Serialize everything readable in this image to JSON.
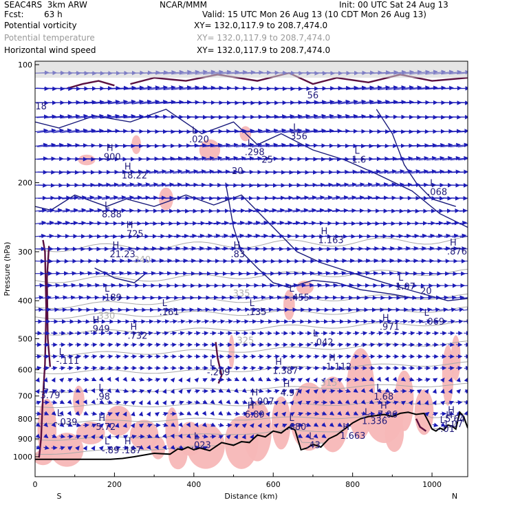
{
  "header": {
    "model": "SEAC4RS  3km ARW",
    "center": "NCAR/MMM",
    "init": "Init: 00 UTC Sat 24 Aug 13",
    "fcst_label": "Fcst:",
    "fcst_value": "63 h",
    "valid": "Valid: 15 UTC Mon 26 Aug 13 (10 CDT Mon 26 Aug 13)",
    "fields": [
      {
        "name": "Potential vorticity",
        "xy": "XY= 132.0,117.9 to 208.7,474.0",
        "color": "#000000"
      },
      {
        "name": "Potential temperature",
        "xy": "XY= 132.0,117.9 to 208.7,474.0",
        "color": "#9a9a9a"
      },
      {
        "name": "Horizontal wind speed",
        "xy": "XY= 132.0,117.9 to 208.7,474.0",
        "color": "#000000"
      }
    ]
  },
  "chart_data": {
    "type": "cross-section",
    "xlabel": "Distance (km)",
    "ylabel": "Pressure (hPa)",
    "xlim": [
      0,
      1090
    ],
    "ylim": [
      1000,
      100
    ],
    "y_scale": "log",
    "x_ticks": [
      0,
      200,
      400,
      600,
      800,
      1000
    ],
    "y_ticks": [
      100,
      200,
      300,
      400,
      500,
      600,
      700,
      800,
      900,
      1000
    ],
    "x_end_labels": {
      "left": "S",
      "right": "N"
    },
    "theta_labels": [
      {
        "label": "340",
        "x": 270,
        "p": 320
      },
      {
        "label": "335",
        "x": 520,
        "p": 390
      },
      {
        "label": "330",
        "x": 180,
        "p": 445
      },
      {
        "label": "325",
        "x": 530,
        "p": 515
      },
      {
        "label": "315",
        "x": 740,
        "p": 660
      }
    ],
    "theta_lines": [
      {
        "p": [
          985,
          965,
          950,
          930,
          920,
          900,
          895
        ]
      },
      {
        "p": [
          905,
          895,
          885,
          870,
          860,
          850,
          845
        ]
      },
      {
        "p": [
          820,
          812,
          805,
          800,
          795,
          790,
          790
        ]
      },
      {
        "p": [
          745,
          740,
          740,
          735,
          735,
          730,
          728
        ]
      },
      {
        "p": [
          680,
          680,
          675,
          672,
          665,
          660,
          655
        ]
      },
      {
        "p": [
          610,
          605,
          608,
          600,
          590,
          585,
          578
        ]
      },
      {
        "p": [
          548,
          545,
          540,
          535,
          528,
          520,
          512
        ]
      },
      {
        "p": [
          485,
          480,
          478,
          470,
          465,
          460,
          455
        ]
      },
      {
        "p": [
          440,
          436,
          432,
          430,
          428,
          425,
          420
        ]
      },
      {
        "p": [
          415,
          408,
          400,
          398,
          395,
          392,
          390
        ]
      },
      {
        "p": [
          355,
          352,
          350,
          345,
          342,
          340,
          338
        ]
      },
      {
        "p": [
          295,
          292,
          290,
          287,
          285,
          282,
          280
        ]
      }
    ],
    "theta_x": [
      0,
      180,
      360,
      540,
      720,
      900,
      1090
    ],
    "wind_speed_labels": [
      {
        "label": "18",
        "x": 15,
        "p": 130
      },
      {
        "label": "56",
        "x": 700,
        "p": 122
      },
      {
        "label": "25",
        "x": 585,
        "p": 178
      },
      {
        "label": "20",
        "x": 510,
        "p": 190
      },
      {
        "label": "20",
        "x": 985,
        "p": 385
      }
    ],
    "terrain": {
      "x": [
        0,
        30,
        100,
        150,
        190,
        220,
        250,
        300,
        340,
        360,
        370,
        385,
        400,
        415,
        440,
        470,
        500,
        520,
        540,
        560,
        580,
        600,
        620,
        640,
        655,
        670,
        685,
        700,
        720,
        740,
        760,
        800,
        820,
        840,
        860,
        880,
        900,
        920,
        940,
        960,
        980,
        990,
        1000,
        1010,
        1020,
        1030,
        1040,
        1050,
        1060,
        1070,
        1080,
        1090
      ],
      "p": [
        1015,
        1015,
        1015,
        1015,
        1015,
        1010,
        1000,
        980,
        985,
        955,
        960,
        945,
        960,
        950,
        965,
        920,
        935,
        915,
        920,
        880,
        890,
        860,
        870,
        840,
        855,
        960,
        950,
        930,
        945,
        900,
        880,
        820,
        800,
        790,
        785,
        780,
        790,
        775,
        770,
        780,
        775,
        810,
        850,
        860,
        845,
        855,
        830,
        835,
        850,
        770,
        790,
        845
      ]
    },
    "extrema": [
      {
        "type": "H",
        "value": "900",
        "x": 180,
        "p": 175
      },
      {
        "type": "H",
        "value": "18.22",
        "x": 225,
        "p": 195
      },
      {
        "type": "L",
        "value": "8.88",
        "x": 175,
        "p": 245
      },
      {
        "type": "H",
        "value": ".725",
        "x": 230,
        "p": 275
      },
      {
        "type": "H",
        "value": "21.23",
        "x": 195,
        "p": 310
      },
      {
        "type": "L",
        "value": ".189",
        "x": 175,
        "p": 400
      },
      {
        "type": "L",
        "value": ".161",
        "x": 320,
        "p": 435
      },
      {
        "type": "H",
        "value": ".949",
        "x": 145,
        "p": 480
      },
      {
        "type": "H",
        "value": ".732",
        "x": 240,
        "p": 500
      },
      {
        "type": "L",
        "value": "-.111",
        "x": 60,
        "p": 580
      },
      {
        "type": "L",
        "value": "-.209",
        "x": 440,
        "p": 620
      },
      {
        "type": "H",
        "value": "1.387",
        "x": 605,
        "p": 615
      },
      {
        "type": "H",
        "value": "1.112",
        "x": 740,
        "p": 600
      },
      {
        "type": "L",
        "value": "3.79",
        "x": 20,
        "p": 710
      },
      {
        "type": "L",
        "value": ".98",
        "x": 160,
        "p": 715
      },
      {
        "type": "H",
        "value": "4.97",
        "x": 625,
        "p": 700
      },
      {
        "type": "H",
        "value": "1.007",
        "x": 545,
        "p": 735
      },
      {
        "type": "H",
        "value": "6.89",
        "x": 535,
        "p": 795
      },
      {
        "type": "L",
        "value": "1.68",
        "x": 860,
        "p": 715
      },
      {
        "type": "H",
        "value": "7.06",
        "x": 870,
        "p": 795
      },
      {
        "type": "L",
        "value": "-.039",
        "x": 55,
        "p": 830
      },
      {
        "type": "H",
        "value": "5.72",
        "x": 160,
        "p": 855
      },
      {
        "type": "L",
        "value": ".680",
        "x": 640,
        "p": 855
      },
      {
        "type": "H",
        "value": "1.663",
        "x": 775,
        "p": 900
      },
      {
        "type": "L",
        "value": ".43",
        "x": 690,
        "p": 950
      },
      {
        "type": "L",
        "value": "-.89",
        "x": 175,
        "p": 980
      },
      {
        "type": "H",
        "value": ".187",
        "x": 225,
        "p": 980
      },
      {
        "type": "L",
        "value": ".023",
        "x": 400,
        "p": 950
      },
      {
        "type": "L",
        "value": "1.336",
        "x": 830,
        "p": 825
      },
      {
        "type": "L",
        "value": "-.01",
        "x": 1020,
        "p": 865
      },
      {
        "type": "H",
        "value": "5.64",
        "x": 1040,
        "p": 815
      },
      {
        "type": "H",
        "value": "1.07",
        "x": 1035,
        "p": 840
      },
      {
        "type": "H",
        "value": "1.163",
        "x": 720,
        "p": 285
      },
      {
        "type": "L",
        "value": "1.07",
        "x": 915,
        "p": 375
      },
      {
        "type": "H",
        "value": ".876",
        "x": 1045,
        "p": 305
      },
      {
        "type": "L",
        "value": "-.069",
        "x": 980,
        "p": 460
      },
      {
        "type": "H",
        "value": ".971",
        "x": 875,
        "p": 475
      },
      {
        "type": "L",
        "value": "-.042",
        "x": 700,
        "p": 520
      },
      {
        "type": "L",
        "value": "-.455",
        "x": 640,
        "p": 400
      },
      {
        "type": "L",
        "value": ".135",
        "x": 540,
        "p": 435
      },
      {
        "type": "H",
        "value": ".83",
        "x": 500,
        "p": 310
      },
      {
        "type": "L",
        "value": ".298",
        "x": 535,
        "p": 170
      },
      {
        "type": "L",
        "value": ".020",
        "x": 395,
        "p": 158
      },
      {
        "type": "L",
        "value": "356",
        "x": 650,
        "p": 155
      },
      {
        "type": "L",
        "value": ".068",
        "x": 995,
        "p": 215
      },
      {
        "type": "L",
        "value": "1.6",
        "x": 805,
        "p": 178
      }
    ],
    "colors": {
      "wind_barb": "#1c1cb8",
      "wind_contour": "#17187a",
      "pv_fill": "#f7b7b7",
      "pv_contour": "#5a1040",
      "theta": "#a8a8a8",
      "terrain": "#000000"
    }
  }
}
